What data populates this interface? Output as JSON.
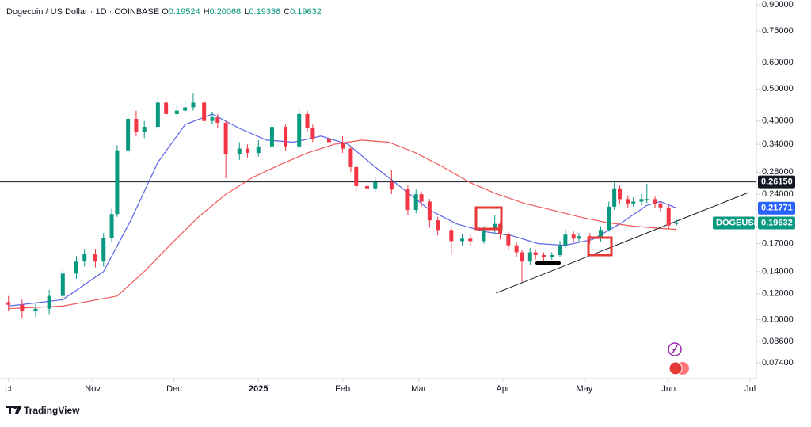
{
  "header": {
    "title": "Dogecoin / US Dollar · 1D · COINBASE",
    "ohlc": [
      {
        "label": "O",
        "value": 0.19524
      },
      {
        "label": "H",
        "value": 0.20068
      },
      {
        "label": "L",
        "value": 0.19336
      },
      {
        "label": "C",
        "value": 0.19632
      }
    ]
  },
  "footer": {
    "brand": "TradingView"
  },
  "chart_data": {
    "type": "candlestick",
    "log_scale": true,
    "grid": false,
    "up_color": "#089981",
    "down_color": "#f23645",
    "xlim": [
      0,
      275
    ],
    "xticks": [
      {
        "value": 0,
        "label": "ct"
      },
      {
        "value": 31,
        "label": "Nov"
      },
      {
        "value": 61,
        "label": "Dec"
      },
      {
        "value": 92,
        "label": "2025"
      },
      {
        "value": 123,
        "label": "Feb"
      },
      {
        "value": 151,
        "label": "Mar"
      },
      {
        "value": 182,
        "label": "Apr"
      },
      {
        "value": 212,
        "label": "May"
      },
      {
        "value": 243,
        "label": "Jun"
      },
      {
        "value": 273,
        "label": "Jul"
      }
    ],
    "ylim": [
      0.0663,
      0.93
    ],
    "yticks": [
      {
        "value": 0.9,
        "label": "0.90000"
      },
      {
        "value": 0.75,
        "label": "0.75000"
      },
      {
        "value": 0.6,
        "label": "0.60000"
      },
      {
        "value": 0.5,
        "label": "0.50000"
      },
      {
        "value": 0.4,
        "label": "0.40000"
      },
      {
        "value": 0.34,
        "label": "0.34000"
      },
      {
        "value": 0.28,
        "label": "0.28000"
      },
      {
        "value": 0.24,
        "label": "0.24000"
      },
      {
        "value": 0.17,
        "label": "0.17000"
      },
      {
        "value": 0.14,
        "label": "0.14000"
      },
      {
        "value": 0.12,
        "label": "0.12000"
      },
      {
        "value": 0.1,
        "label": "0.10000"
      },
      {
        "value": 0.086,
        "label": "0.08600"
      },
      {
        "value": 0.074,
        "label": "0.07400"
      }
    ],
    "x": [
      0,
      5,
      10,
      15,
      20,
      25,
      28,
      32,
      35,
      38,
      40,
      44,
      47,
      50,
      55,
      58,
      62,
      65,
      68,
      72,
      75,
      77,
      80,
      85,
      88,
      92,
      97,
      102,
      107,
      110,
      112,
      118,
      123,
      126,
      128,
      132,
      135,
      141,
      147,
      150,
      152,
      155,
      158,
      163,
      167,
      170,
      175,
      179,
      181,
      184,
      187,
      189,
      192,
      194,
      197,
      200,
      203,
      205,
      208,
      210,
      214,
      218,
      221,
      223,
      225,
      228,
      230,
      233,
      235,
      238,
      240,
      243,
      246
    ],
    "open": [
      0.113,
      0.111,
      0.106,
      0.108,
      0.118,
      0.138,
      0.15,
      0.158,
      0.15,
      0.177,
      0.209,
      0.326,
      0.406,
      0.37,
      0.384,
      0.455,
      0.42,
      0.43,
      0.44,
      0.455,
      0.4,
      0.41,
      0.395,
      0.317,
      0.33,
      0.32,
      0.335,
      0.384,
      0.335,
      0.42,
      0.38,
      0.354,
      0.345,
      0.33,
      0.29,
      0.254,
      0.25,
      0.261,
      0.248,
      0.215,
      0.24,
      0.228,
      0.2,
      0.187,
      0.173,
      0.176,
      0.173,
      0.187,
      0.195,
      0.182,
      0.168,
      0.16,
      0.15,
      0.16,
      0.157,
      0.155,
      0.157,
      0.168,
      0.181,
      0.176,
      0.179,
      0.176,
      0.187,
      0.22,
      0.25,
      0.232,
      0.225,
      0.228,
      0.232,
      0.232,
      0.225,
      0.219,
      0.19524
    ],
    "high": [
      0.118,
      0.115,
      0.112,
      0.123,
      0.143,
      0.156,
      0.164,
      0.164,
      0.183,
      0.217,
      0.338,
      0.42,
      0.43,
      0.4,
      0.48,
      0.475,
      0.45,
      0.46,
      0.484,
      0.465,
      0.425,
      0.42,
      0.4,
      0.345,
      0.34,
      0.35,
      0.4,
      0.39,
      0.435,
      0.43,
      0.39,
      0.365,
      0.36,
      0.335,
      0.295,
      0.262,
      0.27,
      0.285,
      0.255,
      0.248,
      0.245,
      0.232,
      0.205,
      0.192,
      0.182,
      0.182,
      0.192,
      0.208,
      0.198,
      0.185,
      0.172,
      0.163,
      0.165,
      0.163,
      0.16,
      0.16,
      0.173,
      0.188,
      0.185,
      0.183,
      0.183,
      0.192,
      0.228,
      0.26,
      0.255,
      0.238,
      0.235,
      0.24,
      0.258,
      0.236,
      0.228,
      0.222,
      0.20068
    ],
    "low": [
      0.106,
      0.101,
      0.102,
      0.104,
      0.114,
      0.133,
      0.145,
      0.144,
      0.145,
      0.172,
      0.205,
      0.318,
      0.36,
      0.355,
      0.375,
      0.41,
      0.41,
      0.42,
      0.43,
      0.39,
      0.39,
      0.38,
      0.268,
      0.305,
      0.31,
      0.312,
      0.33,
      0.325,
      0.33,
      0.37,
      0.345,
      0.335,
      0.32,
      0.28,
      0.245,
      0.205,
      0.245,
      0.24,
      0.208,
      0.21,
      0.22,
      0.19,
      0.18,
      0.158,
      0.168,
      0.167,
      0.17,
      0.183,
      0.175,
      0.162,
      0.155,
      0.13,
      0.146,
      0.152,
      0.151,
      0.152,
      0.155,
      0.165,
      0.172,
      0.172,
      0.17,
      0.172,
      0.185,
      0.215,
      0.225,
      0.218,
      0.22,
      0.222,
      0.226,
      0.218,
      0.212,
      0.188,
      0.19336
    ],
    "close": [
      0.111,
      0.106,
      0.108,
      0.118,
      0.138,
      0.15,
      0.158,
      0.15,
      0.177,
      0.209,
      0.326,
      0.406,
      0.37,
      0.384,
      0.455,
      0.42,
      0.43,
      0.44,
      0.455,
      0.4,
      0.41,
      0.395,
      0.317,
      0.33,
      0.32,
      0.335,
      0.384,
      0.335,
      0.42,
      0.38,
      0.354,
      0.345,
      0.33,
      0.29,
      0.254,
      0.25,
      0.261,
      0.248,
      0.215,
      0.24,
      0.228,
      0.2,
      0.187,
      0.173,
      0.176,
      0.173,
      0.187,
      0.195,
      0.182,
      0.168,
      0.16,
      0.15,
      0.16,
      0.157,
      0.155,
      0.157,
      0.168,
      0.181,
      0.176,
      0.179,
      0.176,
      0.187,
      0.22,
      0.25,
      0.232,
      0.225,
      0.228,
      0.232,
      0.232,
      0.225,
      0.219,
      0.193,
      0.19632
    ],
    "moving_averages": [
      {
        "color": "#5b63e8",
        "x": [
          0,
          20,
          35,
          45,
          55,
          65,
          75,
          85,
          95,
          105,
          115,
          125,
          135,
          145,
          155,
          165,
          175,
          185,
          195,
          205,
          215,
          225,
          235,
          240,
          246
        ],
        "values": [
          0.11,
          0.115,
          0.14,
          0.2,
          0.3,
          0.39,
          0.42,
          0.38,
          0.35,
          0.345,
          0.36,
          0.34,
          0.29,
          0.25,
          0.215,
          0.195,
          0.185,
          0.18,
          0.17,
          0.168,
          0.175,
          0.195,
          0.222,
          0.228,
          0.2177
        ]
      },
      {
        "color": "#ef5a5a",
        "x": [
          0,
          20,
          40,
          50,
          60,
          70,
          80,
          90,
          100,
          110,
          120,
          130,
          140,
          150,
          160,
          170,
          180,
          190,
          200,
          210,
          220,
          230,
          240,
          246
        ],
        "values": [
          0.108,
          0.11,
          0.118,
          0.14,
          0.17,
          0.205,
          0.24,
          0.27,
          0.295,
          0.32,
          0.34,
          0.35,
          0.345,
          0.32,
          0.29,
          0.26,
          0.24,
          0.225,
          0.215,
          0.205,
          0.197,
          0.192,
          0.189,
          0.1878
        ]
      }
    ],
    "horizontal_line": {
      "value": 0.2615,
      "label": "0.26150",
      "color": "#131722"
    },
    "trendline": {
      "x": [
        179.5,
        272.5
      ],
      "values": [
        0.1205,
        0.243
      ],
      "color": "#131722"
    },
    "ma_label": {
      "value": 0.21771,
      "color": "#2962ff"
    },
    "last_price": {
      "name": "DOGEUSD",
      "value": 0.19632,
      "color": "#089981"
    }
  }
}
